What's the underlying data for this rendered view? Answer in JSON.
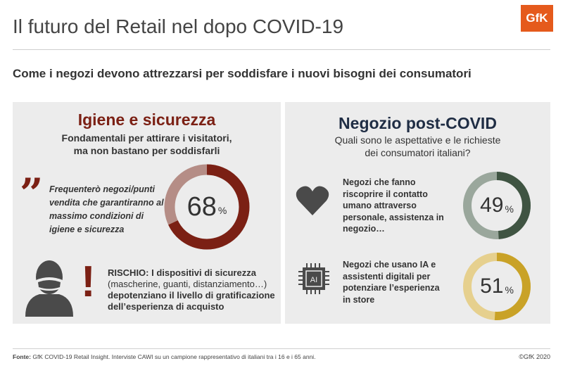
{
  "header": {
    "logo_text": "GfK",
    "title": "Il futuro del Retail nel dopo COVID-19",
    "subtitle": "Come i negozi devono attrezzarsi per soddisfare i nuovi bisogni dei consumatori"
  },
  "left_panel": {
    "heading": "Igiene e sicurezza",
    "subheading_line1": "Fondamentali per attirare i visitatori,",
    "subheading_line2": "ma non bastano per soddisfarli",
    "quote_mark": "”",
    "quote_text": "Frequenterò negozi/punti vendita che garantiranno al massimo condizioni di igiene e sicurezza",
    "stat": {
      "value": 68,
      "display": "68",
      "unit": "%",
      "color": "#7b2014",
      "rest_color": "#b58d86"
    },
    "risk_icon": "person-mask-icon",
    "exclamation": "!",
    "risk_line1": "RISCHIO: I dispositivi di sicurezza",
    "risk_line2": "(mascherine, guanti, distanziamento…)",
    "risk_line3": "depotenziano il livello di gratificazione",
    "risk_line4": "dell’esperienza di acquisto"
  },
  "right_panel": {
    "heading": "Negozio post-COVID",
    "subheading_line1": "Quali sono le aspettative e le richieste",
    "subheading_line2": "dei consumatori italiani?",
    "items": [
      {
        "icon": "heart-icon",
        "text": "Negozi che fanno riscoprire il contatto umano attraverso personale, assistenza in negozio…",
        "value": 49,
        "display": "49",
        "unit": "%",
        "color": "#3f5442",
        "rest_color": "#9aa79c"
      },
      {
        "icon": "ai-chip-icon",
        "icon_label": "AI",
        "text": "Negozi che usano IA e assistenti digitali per potenziare l’esperienza in store",
        "value": 51,
        "display": "51",
        "unit": "%",
        "color": "#c9a227",
        "rest_color": "#e6d08e"
      }
    ]
  },
  "footer": {
    "source_label": "Fonte:",
    "source_text": " GfK COVID-19 Retail Insight. Interviste CAWI su un campione rappresentativo di italiani tra i 16 e i 65 anni.",
    "copyright": "©GfK 2020"
  }
}
